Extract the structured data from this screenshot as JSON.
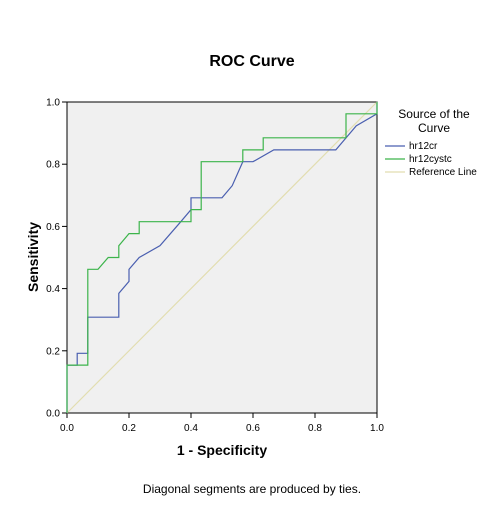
{
  "chart_data": {
    "type": "line",
    "title": "ROC Curve",
    "xlabel": "1 - Specificity",
    "ylabel": "Sensitivity",
    "xlim": [
      0.0,
      1.0
    ],
    "ylim": [
      0.0,
      1.0
    ],
    "x_ticks": [
      "0.0",
      "0.2",
      "0.4",
      "0.6",
      "0.8",
      "1.0"
    ],
    "y_ticks": [
      "0.0",
      "0.2",
      "0.4",
      "0.6",
      "0.8",
      "1.0"
    ],
    "grid": false,
    "legend": {
      "title_line1": "Source of the",
      "title_line2": "Curve",
      "placement": "right"
    },
    "series": [
      {
        "name": "hr12cr",
        "color": "#4a5fb0",
        "points": [
          [
            0.0,
            0.0
          ],
          [
            0.0,
            0.154
          ],
          [
            0.033,
            0.154
          ],
          [
            0.033,
            0.192
          ],
          [
            0.067,
            0.192
          ],
          [
            0.067,
            0.308
          ],
          [
            0.167,
            0.308
          ],
          [
            0.167,
            0.385
          ],
          [
            0.2,
            0.423
          ],
          [
            0.2,
            0.462
          ],
          [
            0.233,
            0.5
          ],
          [
            0.3,
            0.538
          ],
          [
            0.367,
            0.615
          ],
          [
            0.4,
            0.654
          ],
          [
            0.4,
            0.692
          ],
          [
            0.5,
            0.692
          ],
          [
            0.533,
            0.731
          ],
          [
            0.567,
            0.808
          ],
          [
            0.6,
            0.808
          ],
          [
            0.667,
            0.846
          ],
          [
            0.867,
            0.846
          ],
          [
            0.933,
            0.923
          ],
          [
            1.0,
            0.962
          ],
          [
            1.0,
            1.0
          ]
        ]
      },
      {
        "name": "hr12cystc",
        "color": "#3cb44b",
        "points": [
          [
            0.0,
            0.0
          ],
          [
            0.0,
            0.154
          ],
          [
            0.067,
            0.154
          ],
          [
            0.067,
            0.462
          ],
          [
            0.1,
            0.462
          ],
          [
            0.133,
            0.5
          ],
          [
            0.167,
            0.5
          ],
          [
            0.167,
            0.538
          ],
          [
            0.2,
            0.577
          ],
          [
            0.233,
            0.577
          ],
          [
            0.233,
            0.615
          ],
          [
            0.367,
            0.615
          ],
          [
            0.4,
            0.615
          ],
          [
            0.4,
            0.654
          ],
          [
            0.433,
            0.654
          ],
          [
            0.433,
            0.808
          ],
          [
            0.567,
            0.808
          ],
          [
            0.567,
            0.846
          ],
          [
            0.633,
            0.846
          ],
          [
            0.633,
            0.885
          ],
          [
            0.9,
            0.885
          ],
          [
            0.9,
            0.962
          ],
          [
            1.0,
            0.962
          ],
          [
            1.0,
            1.0
          ]
        ]
      },
      {
        "name": "Reference Line",
        "color": "#e2ddb0",
        "points": [
          [
            0.0,
            0.0
          ],
          [
            1.0,
            1.0
          ]
        ]
      }
    ],
    "footnote": "Diagonal segments are produced by ties."
  }
}
